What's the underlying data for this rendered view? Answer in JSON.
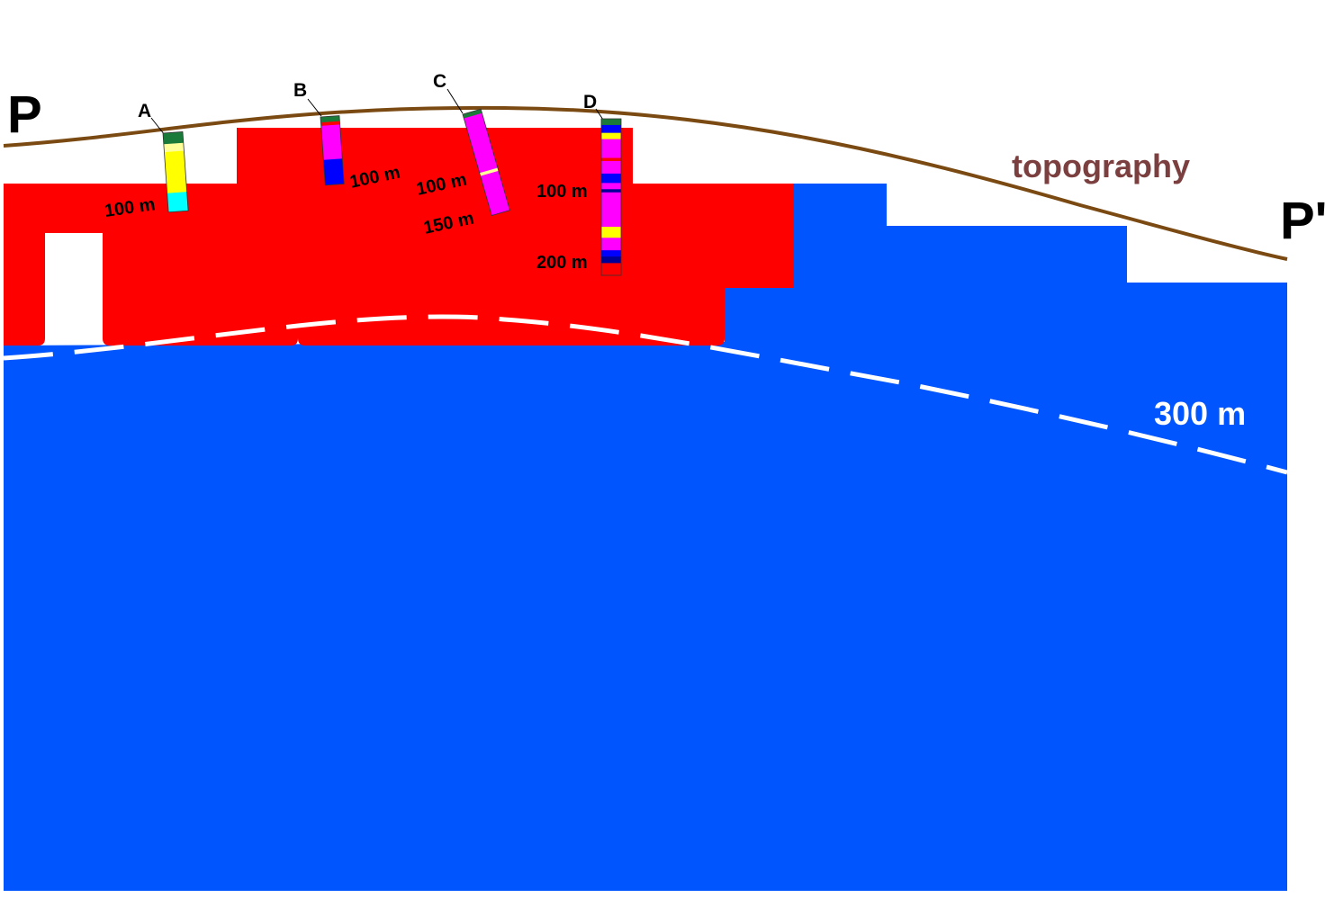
{
  "colors": {
    "background": "#ffffff",
    "upper_unit": "#ff0000",
    "lower_unit": "#0055ff",
    "topography_line": "#7a4a12",
    "topography_label": "#7b3f3f",
    "depth_contour": "#ffffff",
    "well_colors": {
      "green": "#1a7a3a",
      "yellow": "#ffff00",
      "pale_yellow": "#ffff99",
      "cyan": "#00ffff",
      "magenta": "#ff00ff",
      "blue": "#0000ff",
      "red": "#ff0000",
      "dark_blue": "#000099"
    }
  },
  "profile": {
    "start_label": "P",
    "end_label": "P'"
  },
  "topography": {
    "label": "topography"
  },
  "depth_contour": {
    "label": "300 m",
    "line_style": "dashed"
  },
  "wells": [
    {
      "id": "A",
      "depth_labels": [
        "100 m"
      ],
      "sections": [
        {
          "color": "green",
          "fraction": 0.14
        },
        {
          "color": "pale_yellow",
          "fraction": 0.1
        },
        {
          "color": "yellow",
          "fraction": 0.52
        },
        {
          "color": "cyan",
          "fraction": 0.24
        }
      ]
    },
    {
      "id": "B",
      "depth_labels": [
        "100 m"
      ],
      "sections": [
        {
          "color": "green",
          "fraction": 0.08
        },
        {
          "color": "red",
          "fraction": 0.05
        },
        {
          "color": "magenta",
          "fraction": 0.5
        },
        {
          "color": "blue",
          "fraction": 0.37
        }
      ]
    },
    {
      "id": "C",
      "depth_labels": [
        "100 m",
        "150 m"
      ],
      "sections": [
        {
          "color": "green",
          "fraction": 0.04
        },
        {
          "color": "magenta",
          "fraction": 0.54
        },
        {
          "color": "pale_yellow",
          "fraction": 0.03
        },
        {
          "color": "magenta",
          "fraction": 0.39
        }
      ]
    },
    {
      "id": "D",
      "depth_labels": [
        "100 m",
        "200 m"
      ],
      "sections": [
        {
          "color": "green",
          "fraction": 0.04
        },
        {
          "color": "blue",
          "fraction": 0.05
        },
        {
          "color": "yellow",
          "fraction": 0.04
        },
        {
          "color": "magenta",
          "fraction": 0.12
        },
        {
          "color": "red",
          "fraction": 0.02
        },
        {
          "color": "magenta",
          "fraction": 0.08
        },
        {
          "color": "blue",
          "fraction": 0.06
        },
        {
          "color": "magenta",
          "fraction": 0.04
        },
        {
          "color": "dark_blue",
          "fraction": 0.02
        },
        {
          "color": "magenta",
          "fraction": 0.22
        },
        {
          "color": "yellow",
          "fraction": 0.07
        },
        {
          "color": "magenta",
          "fraction": 0.08
        },
        {
          "color": "blue",
          "fraction": 0.04
        },
        {
          "color": "dark_blue",
          "fraction": 0.04
        }
      ]
    }
  ]
}
